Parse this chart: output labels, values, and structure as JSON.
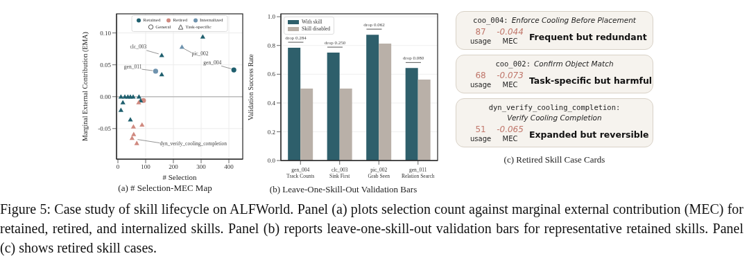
{
  "chart_data": [
    {
      "type": "scatter",
      "title": "(a) # Selection-MEC Map",
      "xlabel": "# Selection",
      "ylabel": "Marginal External Contribution (EMA)",
      "xlim": [
        -5,
        450
      ],
      "xticks": [
        0,
        100,
        200,
        300,
        400
      ],
      "ylim": [
        -0.098,
        0.13
      ],
      "yticks": [
        {
          "value": -0.05,
          "label": "-0.05"
        },
        {
          "value": 0,
          "label": "0.00"
        },
        {
          "value": 0.05,
          "label": "0.05"
        },
        {
          "value": 0.1,
          "label": "0.10"
        }
      ],
      "grid": true,
      "legend": "top",
      "ref_lines": [
        {
          "axis": "y",
          "value": 0,
          "color": "#bbbbbb"
        }
      ],
      "series": [
        {
          "name": "Retained",
          "color": "#1f5f6e",
          "marker": "circle",
          "x": [
            418
          ],
          "values": [
            0.042
          ]
        },
        {
          "color": "#1f5f6e",
          "marker": "triangle",
          "x": [
            306,
            158,
            158,
            11,
            25,
            36,
            45,
            55,
            76,
            18,
            11,
            45,
            82
          ],
          "values": [
            0.094,
            0.065,
            0.035,
            0,
            0,
            0,
            0,
            0,
            0,
            -0.009,
            -0.021,
            -0.036,
            -0.006
          ]
        },
        {
          "name": "Retired",
          "color": "#d08a80",
          "marker": "circle",
          "x": [
            92
          ],
          "values": [
            -0.006
          ]
        },
        {
          "color": "#d08a80",
          "marker": "triangle",
          "x": [
            75,
            87,
            56,
            57,
            51,
            68
          ],
          "values": [
            -0.009,
            -0.044,
            -0.047,
            -0.059,
            -0.065,
            -0.073
          ]
        },
        {
          "name": "Internalized",
          "color": "#6f93ae",
          "marker": "circle",
          "x": [
            136
          ],
          "values": [
            0.04
          ]
        },
        {
          "color": "#6f93ae",
          "marker": "triangle",
          "x": [
            231
          ],
          "values": [
            0.078
          ]
        }
      ],
      "annotations": [
        "General",
        "Task-specific",
        {
          "text": "clc_003",
          "x": 158,
          "y": 0.065
        },
        {
          "text": "pic_002",
          "x": 231,
          "y": 0.078
        },
        {
          "text": "gen_011",
          "x": 136,
          "y": 0.04
        },
        {
          "text": "gen_004",
          "x": 418,
          "y": 0.042
        },
        {
          "text": "dyn_verify_cooling_completion",
          "x": 51,
          "y": -0.065
        }
      ]
    },
    {
      "type": "bar",
      "title": "(b) Leave-One-Skill-Out Validation Bars",
      "ylabel": "Validation Success Rate",
      "categories": [
        "gen_004\nTrack Counts",
        "clc_003\nSink First",
        "pic_002\nGrab Seen",
        "gen_011\nRelation Search"
      ],
      "series": [
        {
          "name": "With skill",
          "color": "#2e5f6b",
          "values": [
            0.784,
            0.75,
            0.875,
            0.643
          ]
        },
        {
          "name": "Skill disabled",
          "color": "#b9b0a8",
          "values": [
            0.5,
            0.5,
            0.813,
            0.563
          ]
        }
      ],
      "ylim": [
        0,
        1.02
      ],
      "yticks": [
        {
          "value": 0,
          "label": "0.0"
        },
        {
          "value": 0.2,
          "label": "0.2"
        },
        {
          "value": 0.4,
          "label": "0.4"
        },
        {
          "value": 0.6,
          "label": "0.6"
        },
        {
          "value": 0.8,
          "label": "0.8"
        },
        {
          "value": 1,
          "label": "1.0"
        }
      ],
      "grid": "y",
      "legend": "top left",
      "annotations": [
        "drop 0.284",
        "drop 0.250",
        "drop 0.062",
        "drop 0.080"
      ]
    },
    {
      "type": "other",
      "title": "(c) Retired Skill Case Cards",
      "annotations": [
        "coo_004: Enforce Cooling Before Placement",
        "87",
        "usage",
        "-0.044",
        "MEC",
        "Frequent but redundant",
        "coo_002: Confirm Object Match",
        "68",
        "usage",
        "-0.073",
        "MEC",
        "Task-specific but harmful",
        "dyn_verify_cooling_completion: Verify Cooling Completion",
        "51",
        "usage",
        "-0.065",
        "MEC",
        "Expanded but reversible",
        "Figure 5: Case study of skill lifecycle on ALFWorld. Panel (a) plots selection count against marginal external contribution (MEC) for retained, retired, and internalized skills. Panel (b) reports leave-one-skill-out validation bars for representative retained skills. Panel (c) shows retired skill cases."
      ]
    }
  ]
}
